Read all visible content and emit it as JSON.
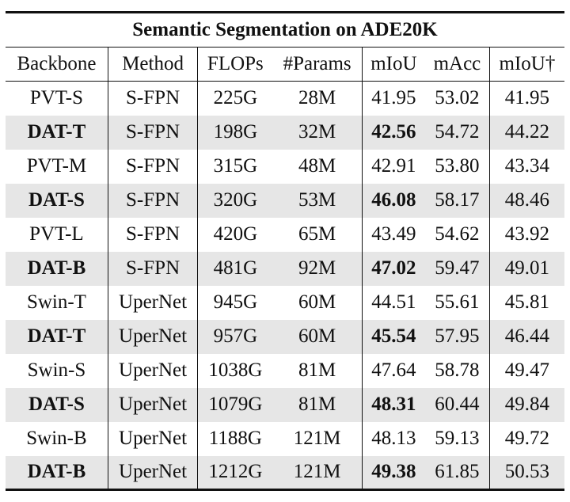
{
  "table": {
    "title": "Semantic Segmentation on ADE20K",
    "headers": [
      "Backbone",
      "Method",
      "FLOPs",
      "#Params",
      "mIoU",
      "mAcc",
      "mIoU†"
    ],
    "rows": [
      [
        "PVT-S",
        "S-FPN",
        "225G",
        "28M",
        "41.95",
        "53.02",
        "41.95"
      ],
      [
        "DAT-T",
        "S-FPN",
        "198G",
        "32M",
        "42.56",
        "54.72",
        "44.22"
      ],
      [
        "PVT-M",
        "S-FPN",
        "315G",
        "48M",
        "42.91",
        "53.80",
        "43.34"
      ],
      [
        "DAT-S",
        "S-FPN",
        "320G",
        "53M",
        "46.08",
        "58.17",
        "48.46"
      ],
      [
        "PVT-L",
        "S-FPN",
        "420G",
        "65M",
        "43.49",
        "54.62",
        "43.92"
      ],
      [
        "DAT-B",
        "S-FPN",
        "481G",
        "92M",
        "47.02",
        "59.47",
        "49.01"
      ],
      [
        "Swin-T",
        "UperNet",
        "945G",
        "60M",
        "44.51",
        "55.61",
        "45.81"
      ],
      [
        "DAT-T",
        "UperNet",
        "957G",
        "60M",
        "45.54",
        "57.95",
        "46.44"
      ],
      [
        "Swin-S",
        "UperNet",
        "1038G",
        "81M",
        "47.64",
        "58.78",
        "49.47"
      ],
      [
        "DAT-S",
        "UperNet",
        "1079G",
        "81M",
        "48.31",
        "60.44",
        "49.84"
      ],
      [
        "Swin-B",
        "UperNet",
        "1188G",
        "121M",
        "48.13",
        "59.13",
        "49.72"
      ],
      [
        "DAT-B",
        "UperNet",
        "1212G",
        "121M",
        "49.38",
        "61.85",
        "50.53"
      ]
    ]
  }
}
